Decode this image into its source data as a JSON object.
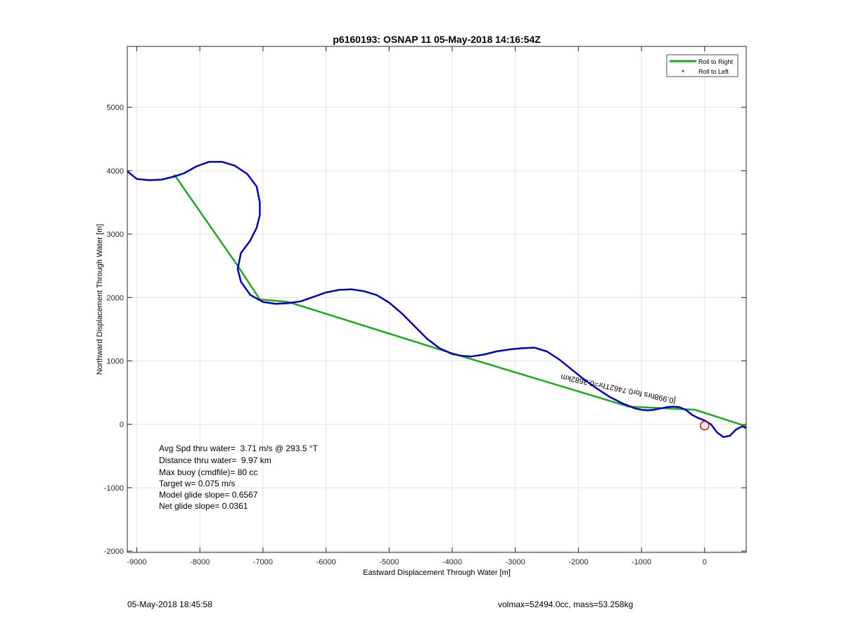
{
  "chart_data": {
    "type": "line",
    "title": "p6160193: OSNAP 11 05-May-2018 14:16:54Z",
    "xlabel": "Eastward Displacement Through Water [m]",
    "ylabel": "Northward Displacement Through Water [m]",
    "xlim": [
      -9150,
      660
    ],
    "ylim": [
      -2020,
      5960
    ],
    "xticks": [
      -9000,
      -8000,
      -7000,
      -6000,
      -5000,
      -4000,
      -3000,
      -2000,
      -1000,
      0
    ],
    "yticks": [
      -2000,
      -1000,
      0,
      1000,
      2000,
      3000,
      4000,
      5000
    ],
    "grid": true,
    "legend_position": "top-right",
    "legend": [
      {
        "label": "Roll to Right",
        "color": "#1aaa1a",
        "marker": "line"
      },
      {
        "label": "Roll to Left",
        "color": "#ff0000",
        "marker": "dot"
      }
    ],
    "series": [
      {
        "name": "Roll to Right",
        "color": "#1aaa1a",
        "points": [
          [
            660,
            -30
          ],
          [
            -150,
            230
          ],
          [
            -1200,
            280
          ],
          [
            -4000,
            1120
          ],
          [
            -6600,
            1930
          ],
          [
            -7050,
            1970
          ],
          [
            -7400,
            2500
          ],
          [
            -8400,
            3930
          ]
        ]
      },
      {
        "color": "#0000c8",
        "points": [
          [
            660,
            -60
          ],
          [
            600,
            -30
          ],
          [
            500,
            -80
          ],
          [
            400,
            -180
          ],
          [
            300,
            -200
          ],
          [
            200,
            -130
          ],
          [
            100,
            0
          ],
          [
            0,
            60
          ],
          [
            -100,
            100
          ],
          [
            -200,
            150
          ],
          [
            -300,
            230
          ],
          [
            -400,
            270
          ],
          [
            -500,
            280
          ],
          [
            -600,
            270
          ],
          [
            -700,
            250
          ],
          [
            -800,
            230
          ],
          [
            -900,
            220
          ],
          [
            -1000,
            230
          ],
          [
            -1100,
            250
          ],
          [
            -1300,
            330
          ],
          [
            -1500,
            430
          ],
          [
            -1700,
            560
          ],
          [
            -1900,
            700
          ],
          [
            -2100,
            860
          ],
          [
            -2300,
            1020
          ],
          [
            -2500,
            1150
          ],
          [
            -2700,
            1210
          ],
          [
            -2900,
            1200
          ],
          [
            -3100,
            1180
          ],
          [
            -3300,
            1150
          ],
          [
            -3500,
            1100
          ],
          [
            -3700,
            1070
          ],
          [
            -3850,
            1080
          ],
          [
            -4000,
            1110
          ],
          [
            -4200,
            1200
          ],
          [
            -4400,
            1350
          ],
          [
            -4600,
            1550
          ],
          [
            -4800,
            1750
          ],
          [
            -5000,
            1920
          ],
          [
            -5200,
            2040
          ],
          [
            -5400,
            2100
          ],
          [
            -5600,
            2130
          ],
          [
            -5800,
            2120
          ],
          [
            -6000,
            2080
          ],
          [
            -6200,
            2010
          ],
          [
            -6400,
            1940
          ],
          [
            -6600,
            1910
          ],
          [
            -6800,
            1900
          ],
          [
            -7000,
            1930
          ],
          [
            -7200,
            2040
          ],
          [
            -7350,
            2250
          ],
          [
            -7400,
            2450
          ],
          [
            -7350,
            2700
          ],
          [
            -7200,
            2900
          ],
          [
            -7100,
            3100
          ],
          [
            -7050,
            3300
          ],
          [
            -7050,
            3500
          ],
          [
            -7100,
            3750
          ],
          [
            -7250,
            3950
          ],
          [
            -7450,
            4080
          ],
          [
            -7650,
            4140
          ],
          [
            -7850,
            4140
          ],
          [
            -8050,
            4070
          ],
          [
            -8250,
            3960
          ],
          [
            -8400,
            3910
          ],
          [
            -8600,
            3860
          ],
          [
            -8800,
            3850
          ],
          [
            -9000,
            3870
          ],
          [
            -9150,
            3990
          ]
        ]
      }
    ],
    "markers": [
      {
        "type": "circle",
        "x": 0,
        "y": -20,
        "color": "#ff0000"
      }
    ],
    "annotations": [
      {
        "text": "[0.998hrs for0.7462Thr=0.3682km",
        "x": -2270,
        "y": 790,
        "rotation_deg": 12,
        "flipped": true
      }
    ],
    "stats": [
      "Avg Spd thru water=  3.71 m/s @ 293.5 °T",
      "Distance thru water=  9.97 km",
      "Max buoy (cmdfile)= 80 cc",
      "Target w= 0.075 m/s",
      "Model glide slope= 0.6567",
      "Net glide slope= 0.0361"
    ]
  },
  "footer": {
    "left": "05-May-2018 18:45:58",
    "right": "volmax=52494.0cc, mass=53.258kg"
  }
}
